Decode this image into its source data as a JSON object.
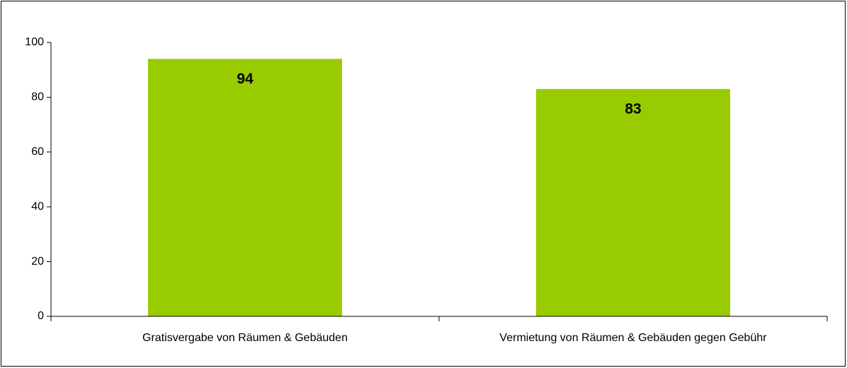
{
  "chart_data": {
    "type": "bar",
    "categories": [
      "Gratisvergabe von Räumen & Gebäuden",
      "Vermietung von Räumen & Gebäuden gegen Gebühr"
    ],
    "values": [
      94,
      83
    ],
    "color": "#99cc00",
    "ylim": [
      0,
      100
    ],
    "yticks": [
      0,
      20,
      40,
      60,
      80,
      100
    ],
    "grid": false
  }
}
